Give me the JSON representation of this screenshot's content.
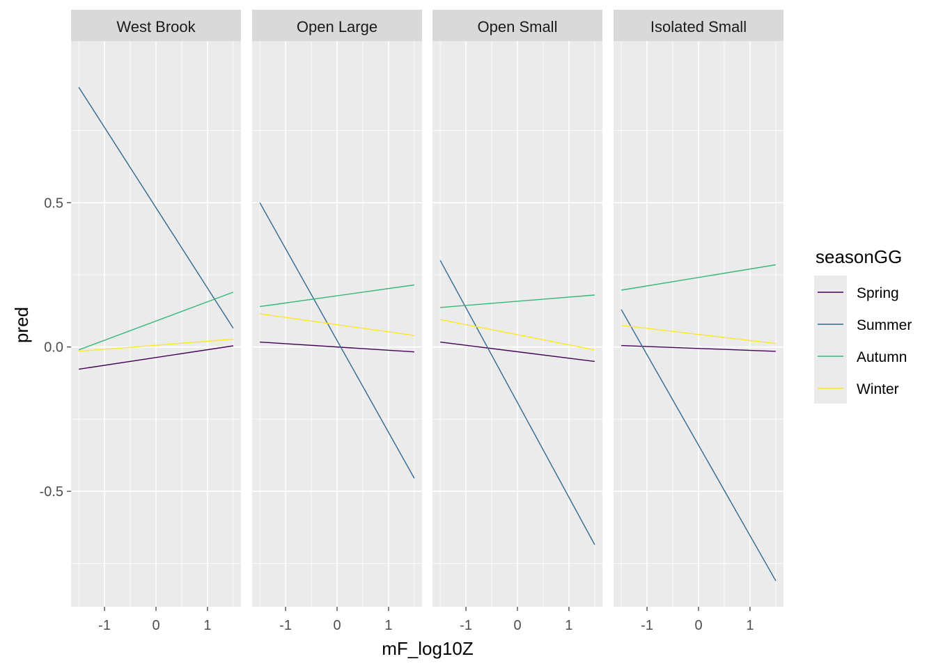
{
  "chart_data": {
    "type": "line",
    "xlabel": "mF_log10Z",
    "ylabel": "pred",
    "xlim": [
      -1.65,
      1.65
    ],
    "ylim": [
      -0.9,
      1.06
    ],
    "x_ticks": [
      -1,
      0,
      1
    ],
    "x_tick_labels": [
      "-1",
      "0",
      "1"
    ],
    "y_ticks": [
      -0.5,
      0.0,
      0.5
    ],
    "y_tick_labels": [
      "-0.5",
      "0.0",
      "0.5"
    ],
    "grid": true,
    "legend": {
      "title": "seasonGG",
      "position": "right",
      "entries": [
        "Spring",
        "Summer",
        "Autumn",
        "Winter"
      ]
    },
    "colors": {
      "Spring": "#440154",
      "Summer": "#31688e",
      "Autumn": "#35b779",
      "Winter": "#fde725"
    },
    "panels": [
      {
        "title": "West Brook",
        "series": [
          {
            "name": "Spring",
            "x": [
              -1.5,
              1.5
            ],
            "y": [
              -0.077,
              0.004
            ]
          },
          {
            "name": "Summer",
            "x": [
              -1.5,
              1.5
            ],
            "y": [
              0.9,
              0.065
            ]
          },
          {
            "name": "Autumn",
            "x": [
              -1.5,
              1.5
            ],
            "y": [
              -0.01,
              0.19
            ]
          },
          {
            "name": "Winter",
            "x": [
              -1.5,
              1.5
            ],
            "y": [
              -0.015,
              0.027
            ]
          }
        ]
      },
      {
        "title": "Open Large",
        "series": [
          {
            "name": "Spring",
            "x": [
              -1.5,
              1.5
            ],
            "y": [
              0.017,
              -0.017
            ]
          },
          {
            "name": "Summer",
            "x": [
              -1.5,
              1.5
            ],
            "y": [
              0.5,
              -0.455
            ]
          },
          {
            "name": "Autumn",
            "x": [
              -1.5,
              1.5
            ],
            "y": [
              0.14,
              0.215
            ]
          },
          {
            "name": "Winter",
            "x": [
              -1.5,
              1.5
            ],
            "y": [
              0.115,
              0.04
            ]
          }
        ]
      },
      {
        "title": "Open Small",
        "series": [
          {
            "name": "Spring",
            "x": [
              -1.5,
              1.5
            ],
            "y": [
              0.017,
              -0.05
            ]
          },
          {
            "name": "Summer",
            "x": [
              -1.5,
              1.5
            ],
            "y": [
              0.3,
              -0.685
            ]
          },
          {
            "name": "Autumn",
            "x": [
              -1.5,
              1.5
            ],
            "y": [
              0.137,
              0.18
            ]
          },
          {
            "name": "Winter",
            "x": [
              -1.5,
              1.5
            ],
            "y": [
              0.095,
              -0.01
            ]
          }
        ]
      },
      {
        "title": "Isolated Small",
        "series": [
          {
            "name": "Spring",
            "x": [
              -1.5,
              1.5
            ],
            "y": [
              0.005,
              -0.015
            ]
          },
          {
            "name": "Summer",
            "x": [
              -1.5,
              1.5
            ],
            "y": [
              0.13,
              -0.81
            ]
          },
          {
            "name": "Autumn",
            "x": [
              -1.5,
              1.5
            ],
            "y": [
              0.197,
              0.285
            ]
          },
          {
            "name": "Winter",
            "x": [
              -1.5,
              1.5
            ],
            "y": [
              0.075,
              0.012
            ]
          }
        ]
      }
    ]
  }
}
